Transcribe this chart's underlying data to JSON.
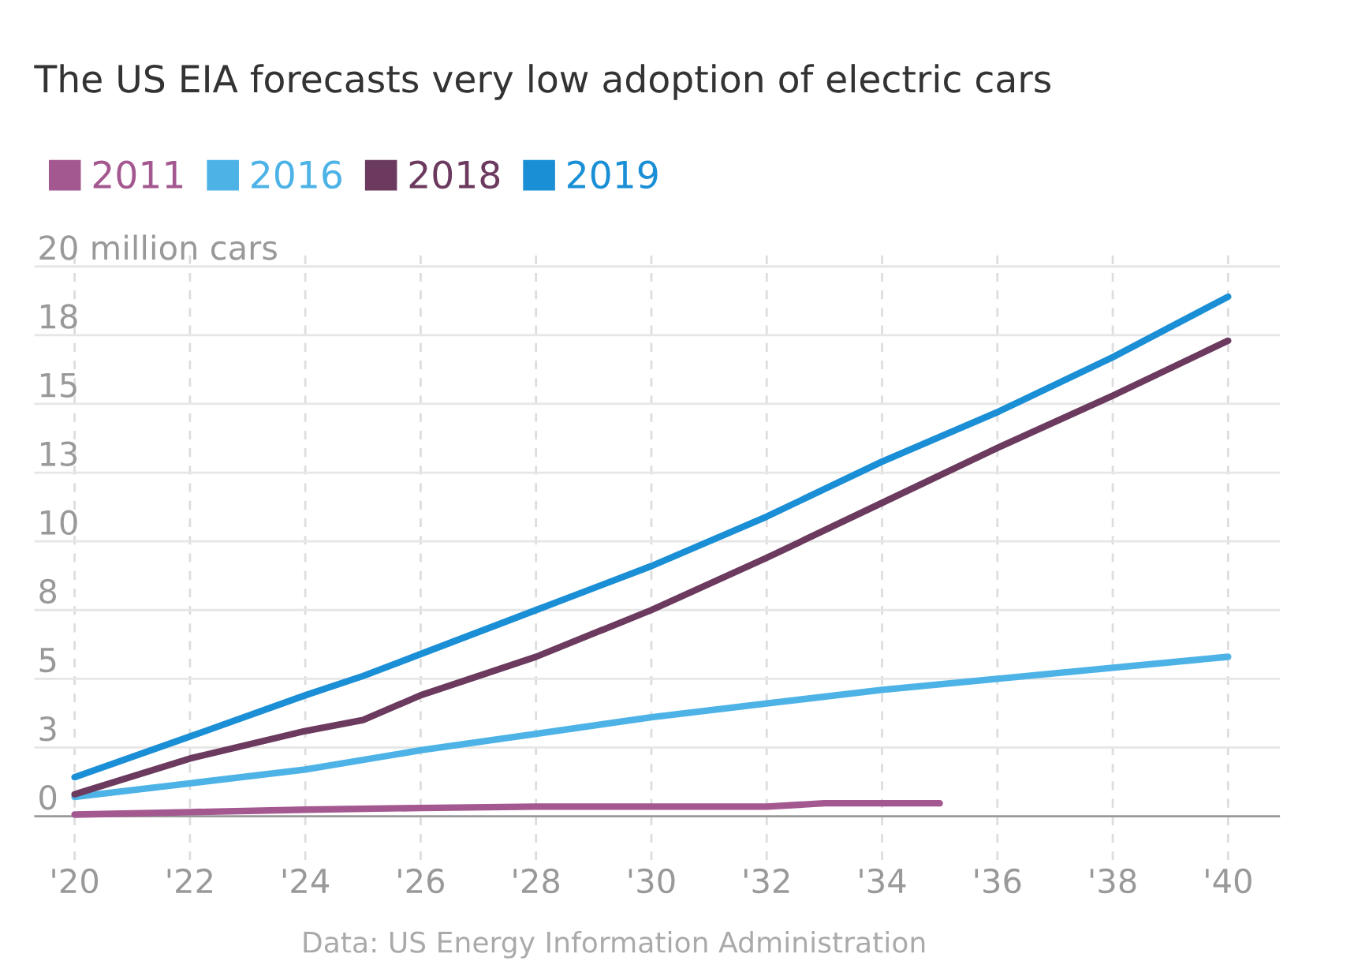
{
  "chart_data": {
    "type": "line",
    "title": "The US EIA forecasts very low adoption of electric cars",
    "series": [
      {
        "name": "2011",
        "color": "#a45890",
        "x": [
          2020,
          2022,
          2024,
          2026,
          2028,
          2030,
          2032,
          2033,
          2035
        ],
        "values": [
          0.06,
          0.15,
          0.24,
          0.3,
          0.35,
          0.35,
          0.35,
          0.47,
          0.47
        ]
      },
      {
        "name": "2016",
        "color": "#4db3e6",
        "x": [
          2020,
          2022,
          2024,
          2026,
          2028,
          2030,
          2032,
          2034,
          2036,
          2038,
          2040
        ],
        "values": [
          0.7,
          1.2,
          1.7,
          2.4,
          3.0,
          3.6,
          4.1,
          4.6,
          5.0,
          5.4,
          5.8
        ]
      },
      {
        "name": "2018",
        "color": "#6b3a5e",
        "x": [
          2020,
          2022,
          2024,
          2025,
          2026,
          2028,
          2030,
          2032,
          2034,
          2036,
          2038,
          2040
        ],
        "values": [
          0.8,
          2.1,
          3.1,
          3.5,
          4.4,
          5.8,
          7.5,
          9.4,
          11.4,
          13.4,
          15.3,
          17.3
        ]
      },
      {
        "name": "2019",
        "color": "#1a8fd6",
        "x": [
          2020,
          2022,
          2024,
          2025,
          2026,
          2028,
          2030,
          2032,
          2034,
          2036,
          2038,
          2040
        ],
        "values": [
          1.42,
          2.9,
          4.4,
          5.1,
          5.9,
          7.5,
          9.1,
          10.9,
          12.9,
          14.7,
          16.7,
          18.9
        ]
      }
    ],
    "xlim": [
      2019.3,
      2040.9
    ],
    "ylim": [
      -1.6,
      20.5
    ],
    "xticks": [
      {
        "value": 2020,
        "label": "'20"
      },
      {
        "value": 2022,
        "label": "'22"
      },
      {
        "value": 2024,
        "label": "'24"
      },
      {
        "value": 2026,
        "label": "'26"
      },
      {
        "value": 2028,
        "label": "'28"
      },
      {
        "value": 2030,
        "label": "'30"
      },
      {
        "value": 2032,
        "label": "'32"
      },
      {
        "value": 2034,
        "label": "'34"
      },
      {
        "value": 2036,
        "label": "'36"
      },
      {
        "value": 2038,
        "label": "'38"
      },
      {
        "value": 2040,
        "label": "'40"
      }
    ],
    "yticks": [
      0,
      {
        "value": 2.5,
        "label": "3"
      },
      5,
      {
        "value": 7.5,
        "label": "8"
      },
      10,
      {
        "value": 12.5,
        "label": "13"
      },
      15,
      {
        "value": 17.5,
        "label": "18"
      },
      {
        "value": 20,
        "label": "20 million cars"
      }
    ],
    "grid": true,
    "legend": "top left",
    "marker": "none",
    "line_style": "solid",
    "annotations": [
      "Data: US Energy Information Administration"
    ]
  }
}
